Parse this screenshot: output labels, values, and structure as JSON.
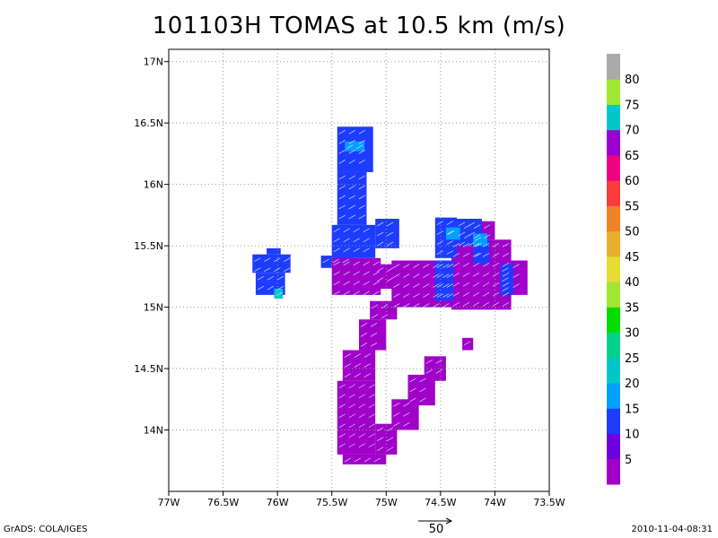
{
  "chart_data": {
    "type": "heatmap",
    "title": "101103H TOMAS at 10.5 km (m/s)",
    "xlim": [
      -77,
      -73.5
    ],
    "ylim": [
      13.5,
      17.1
    ],
    "x_ticks": [
      {
        "value": -77,
        "label": "77W"
      },
      {
        "value": -76.5,
        "label": "76.5W"
      },
      {
        "value": -76,
        "label": "76W"
      },
      {
        "value": -75.5,
        "label": "75.5W"
      },
      {
        "value": -75,
        "label": "75W"
      },
      {
        "value": -74.5,
        "label": "74.5W"
      },
      {
        "value": -74,
        "label": "74W"
      },
      {
        "value": -73.5,
        "label": "73.5W"
      }
    ],
    "y_ticks": [
      {
        "value": 14,
        "label": "14N"
      },
      {
        "value": 14.5,
        "label": "14.5N"
      },
      {
        "value": 15,
        "label": "15N"
      },
      {
        "value": 15.5,
        "label": "15.5N"
      },
      {
        "value": 16,
        "label": "16N"
      },
      {
        "value": 16.5,
        "label": "16.5N"
      },
      {
        "value": 17,
        "label": "17N"
      }
    ],
    "grid": true,
    "colorbar": {
      "labels": [
        "5",
        "10",
        "15",
        "20",
        "25",
        "30",
        "35",
        "40",
        "45",
        "50",
        "55",
        "60",
        "65",
        "70",
        "75",
        "80"
      ],
      "colors": [
        "#a000c8",
        "#6e00dc",
        "#1e3cff",
        "#00a0ff",
        "#00c8c8",
        "#00d28c",
        "#00dc00",
        "#a0e632",
        "#e6dc32",
        "#e6af2d",
        "#f08228",
        "#fa3c3c",
        "#f00082",
        "#9b00d2",
        "#00c8c8",
        "#a0e632",
        "#aaaaaa"
      ]
    },
    "regions": [
      {
        "name": "west cell",
        "color": "#1e3cff",
        "cells": [
          [
            -76.23,
            15.28,
            -75.88,
            15.43
          ],
          [
            -76.2,
            15.1,
            -75.93,
            15.28
          ],
          [
            -76.1,
            15.43,
            -75.97,
            15.48
          ]
        ]
      },
      {
        "name": "west cell core",
        "color": "#00c8c8",
        "cells": [
          [
            -76.03,
            15.07,
            -75.95,
            15.15
          ]
        ]
      },
      {
        "name": "northern band",
        "color": "#1e3cff",
        "cells": [
          [
            -75.45,
            16.1,
            -75.12,
            16.47
          ],
          [
            -75.45,
            15.67,
            -75.18,
            16.1
          ],
          [
            -75.5,
            15.4,
            -75.1,
            15.67
          ],
          [
            -75.1,
            15.48,
            -74.88,
            15.72
          ],
          [
            -75.6,
            15.32,
            -75.3,
            15.42
          ]
        ]
      },
      {
        "name": "northern band core",
        "color": "#00a0ff",
        "cells": [
          [
            -75.38,
            16.27,
            -75.2,
            16.35
          ]
        ]
      },
      {
        "name": "central purple",
        "color": "#a000c8",
        "cells": [
          [
            -75.5,
            15.1,
            -75.05,
            15.4
          ],
          [
            -75.1,
            15.15,
            -74.85,
            15.35
          ]
        ]
      },
      {
        "name": "east blob purple",
        "color": "#a000c8",
        "cells": [
          [
            -74.95,
            15.0,
            -74.4,
            15.38
          ],
          [
            -74.4,
            14.98,
            -73.85,
            15.55
          ],
          [
            -74.3,
            15.55,
            -74.0,
            15.7
          ],
          [
            -73.85,
            15.1,
            -73.7,
            15.38
          ]
        ]
      },
      {
        "name": "east blob blue",
        "color": "#1e3cff",
        "cells": [
          [
            -74.55,
            15.4,
            -74.35,
            15.73
          ],
          [
            -74.35,
            15.5,
            -74.12,
            15.72
          ],
          [
            -74.2,
            15.35,
            -74.05,
            15.55
          ],
          [
            -74.55,
            15.05,
            -74.38,
            15.38
          ],
          [
            -73.95,
            15.1,
            -73.83,
            15.35
          ]
        ]
      },
      {
        "name": "east blob core",
        "color": "#00a0ff",
        "cells": [
          [
            -74.45,
            15.55,
            -74.32,
            15.65
          ],
          [
            -74.2,
            15.5,
            -74.07,
            15.6
          ]
        ]
      },
      {
        "name": "southern band",
        "color": "#a000c8",
        "cells": [
          [
            -75.15,
            14.9,
            -74.9,
            15.05
          ],
          [
            -75.25,
            14.65,
            -75.0,
            14.9
          ],
          [
            -75.4,
            14.4,
            -75.1,
            14.65
          ],
          [
            -75.45,
            13.8,
            -75.1,
            14.4
          ],
          [
            -75.4,
            13.72,
            -75.0,
            13.8
          ]
        ]
      },
      {
        "name": "diagonal band",
        "color": "#a000c8",
        "cells": [
          [
            -75.1,
            13.8,
            -74.9,
            14.05
          ],
          [
            -74.95,
            14.0,
            -74.7,
            14.25
          ],
          [
            -74.8,
            14.2,
            -74.55,
            14.45
          ],
          [
            -74.65,
            14.4,
            -74.45,
            14.6
          ],
          [
            -74.3,
            14.65,
            -74.2,
            14.75
          ]
        ]
      }
    ],
    "reference_vector": {
      "label": "50",
      "unit": "m/s"
    }
  },
  "footer": {
    "source": "GrADS: COLA/IGES",
    "timestamp": "2010-11-04-08:31"
  }
}
